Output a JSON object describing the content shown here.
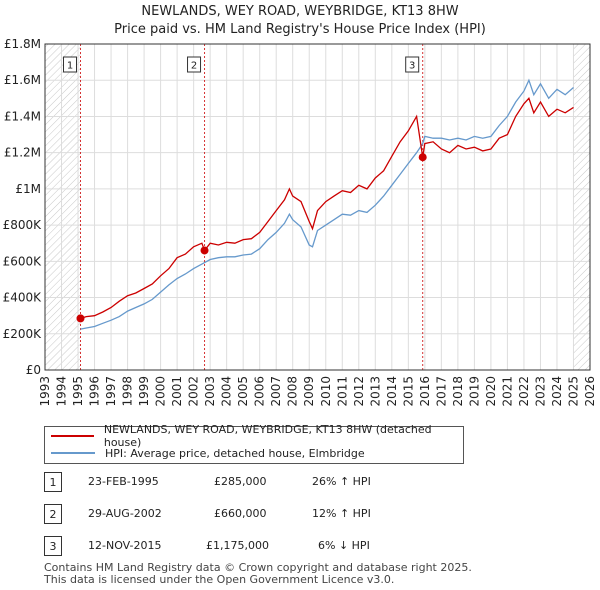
{
  "title_line1": "NEWLANDS, WEY ROAD, WEYBRIDGE, KT13 8HW",
  "title_line2": "Price paid vs. HM Land Registry's House Price Index (HPI)",
  "colors": {
    "price": "#cc0000",
    "hpi": "#6699cc",
    "grid": "#dddddd",
    "marker": "#cc0000"
  },
  "chart_data": {
    "type": "line",
    "title": "NEWLANDS, WEY ROAD, WEYBRIDGE, KT13 8HW — Price paid vs. HM Land Registry's House Price Index (HPI)",
    "xlabel": "",
    "ylabel": "",
    "xlim": [
      1993,
      2026
    ],
    "ylim": [
      0,
      1800000
    ],
    "x_ticks": [
      1993,
      1994,
      1995,
      1996,
      1997,
      1998,
      1999,
      2000,
      2001,
      2002,
      2003,
      2004,
      2005,
      2006,
      2007,
      2008,
      2009,
      2010,
      2011,
      2012,
      2013,
      2014,
      2015,
      2016,
      2017,
      2018,
      2019,
      2020,
      2021,
      2022,
      2023,
      2024,
      2025,
      2026
    ],
    "y_ticks": [
      {
        "value": 0,
        "label": "£0"
      },
      {
        "value": 200000,
        "label": "£200K"
      },
      {
        "value": 400000,
        "label": "£400K"
      },
      {
        "value": 600000,
        "label": "£600K"
      },
      {
        "value": 800000,
        "label": "£800K"
      },
      {
        "value": 1000000,
        "label": "£1M"
      },
      {
        "value": 1200000,
        "label": "£1.2M"
      },
      {
        "value": 1400000,
        "label": "£1.4M"
      },
      {
        "value": 1600000,
        "label": "£1.6M"
      },
      {
        "value": 1800000,
        "label": "£1.8M"
      }
    ],
    "grid": true,
    "shaded_before": 1995.15,
    "shaded_after": 2025.0,
    "series": [
      {
        "name": "NEWLANDS, WEY ROAD, WEYBRIDGE, KT13 8HW (detached house)",
        "x": [
          1995.15,
          1995.5,
          1996,
          1996.5,
          1997,
          1997.5,
          1998,
          1998.5,
          1999,
          1999.5,
          2000,
          2000.5,
          2001,
          2001.5,
          2002,
          2002.5,
          2002.66,
          2003,
          2003.5,
          2004,
          2004.5,
          2005,
          2005.5,
          2006,
          2006.5,
          2007,
          2007.5,
          2007.8,
          2008,
          2008.5,
          2009,
          2009.2,
          2009.5,
          2010,
          2010.5,
          2011,
          2011.5,
          2012,
          2012.5,
          2013,
          2013.5,
          2014,
          2014.5,
          2015,
          2015.5,
          2015.87,
          2016,
          2016.5,
          2017,
          2017.5,
          2018,
          2018.5,
          2019,
          2019.5,
          2020,
          2020.5,
          2021,
          2021.5,
          2022,
          2022.3,
          2022.6,
          2023,
          2023.5,
          2024,
          2024.5,
          2025
        ],
        "values": [
          285000,
          295000,
          300000,
          320000,
          345000,
          380000,
          410000,
          425000,
          450000,
          475000,
          520000,
          560000,
          620000,
          640000,
          680000,
          700000,
          660000,
          700000,
          690000,
          705000,
          700000,
          720000,
          725000,
          760000,
          820000,
          880000,
          940000,
          1000000,
          960000,
          930000,
          820000,
          780000,
          880000,
          930000,
          960000,
          990000,
          980000,
          1020000,
          1000000,
          1060000,
          1100000,
          1180000,
          1260000,
          1320000,
          1400000,
          1175000,
          1250000,
          1260000,
          1220000,
          1200000,
          1240000,
          1220000,
          1230000,
          1210000,
          1220000,
          1280000,
          1300000,
          1400000,
          1470000,
          1500000,
          1420000,
          1480000,
          1400000,
          1440000,
          1420000,
          1450000
        ]
      },
      {
        "name": "HPI: Average price, detached house, Elmbridge",
        "x": [
          1995.15,
          1995.5,
          1996,
          1996.5,
          1997,
          1997.5,
          1998,
          1998.5,
          1999,
          1999.5,
          2000,
          2000.5,
          2001,
          2001.5,
          2002,
          2002.5,
          2003,
          2003.5,
          2004,
          2004.5,
          2005,
          2005.5,
          2006,
          2006.5,
          2007,
          2007.5,
          2007.8,
          2008,
          2008.5,
          2009,
          2009.2,
          2009.5,
          2010,
          2010.5,
          2011,
          2011.5,
          2012,
          2012.5,
          2013,
          2013.5,
          2014,
          2014.5,
          2015,
          2015.5,
          2015.87,
          2016,
          2016.5,
          2017,
          2017.5,
          2018,
          2018.5,
          2019,
          2019.5,
          2020,
          2020.5,
          2021,
          2021.5,
          2022,
          2022.3,
          2022.6,
          2023,
          2023.5,
          2024,
          2024.5,
          2025
        ],
        "values": [
          226000,
          232000,
          240000,
          258000,
          275000,
          295000,
          325000,
          345000,
          365000,
          390000,
          430000,
          470000,
          505000,
          530000,
          560000,
          585000,
          610000,
          620000,
          625000,
          625000,
          635000,
          640000,
          670000,
          720000,
          760000,
          810000,
          860000,
          830000,
          790000,
          690000,
          680000,
          770000,
          800000,
          830000,
          860000,
          855000,
          880000,
          870000,
          910000,
          960000,
          1020000,
          1080000,
          1140000,
          1200000,
          1250000,
          1290000,
          1280000,
          1280000,
          1270000,
          1280000,
          1270000,
          1290000,
          1280000,
          1290000,
          1350000,
          1400000,
          1480000,
          1540000,
          1600000,
          1520000,
          1580000,
          1500000,
          1550000,
          1520000,
          1560000
        ]
      }
    ],
    "sale_markers": [
      {
        "id": "1",
        "year": 1995.15,
        "price": 285000
      },
      {
        "id": "2",
        "year": 2002.66,
        "price": 660000
      },
      {
        "id": "3",
        "year": 2015.87,
        "price": 1175000
      }
    ]
  },
  "legend": {
    "price_label": "NEWLANDS, WEY ROAD, WEYBRIDGE, KT13 8HW (detached house)",
    "hpi_label": "HPI: Average price, detached house, Elmbridge"
  },
  "sales": [
    {
      "id": "1",
      "date": "23-FEB-1995",
      "price": "£285,000",
      "hpi": "26% ↑ HPI"
    },
    {
      "id": "2",
      "date": "29-AUG-2002",
      "price": "£660,000",
      "hpi": "12% ↑ HPI"
    },
    {
      "id": "3",
      "date": "12-NOV-2015",
      "price": "£1,175,000",
      "hpi": "6% ↓ HPI"
    }
  ],
  "footer": {
    "line1": "Contains HM Land Registry data © Crown copyright and database right 2025.",
    "line2": "This data is licensed under the Open Government Licence v3.0."
  }
}
